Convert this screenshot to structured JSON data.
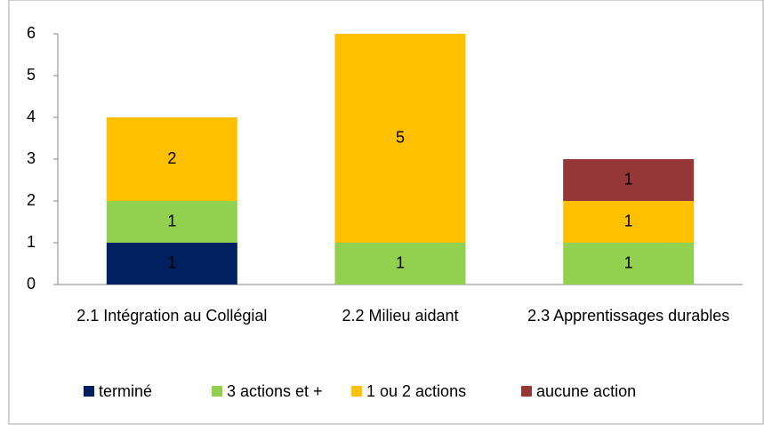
{
  "chart_data": {
    "type": "bar",
    "stacked": true,
    "categories": [
      "2.1 Intégration au Collégial",
      "2.2  Milieu aidant",
      "2.3 Apprentissages durables"
    ],
    "series": [
      {
        "name": "terminé",
        "color": "#002060",
        "label_color": "#ffffff",
        "values": [
          1,
          0,
          0
        ]
      },
      {
        "name": "3 actions et +",
        "color": "#92d050",
        "label_color": "#000000",
        "values": [
          1,
          1,
          1
        ]
      },
      {
        "name": "1 ou 2 actions",
        "color": "#ffc000",
        "label_color": "#000000",
        "values": [
          2,
          5,
          1
        ]
      },
      {
        "name": "aucune action",
        "color": "#953735",
        "label_color": "#ffffff",
        "values": [
          0,
          0,
          1
        ]
      }
    ],
    "ylim": [
      0,
      6
    ],
    "yticks": [
      0,
      1,
      2,
      3,
      4,
      5,
      6
    ],
    "grid": false,
    "legend": "bottom"
  }
}
